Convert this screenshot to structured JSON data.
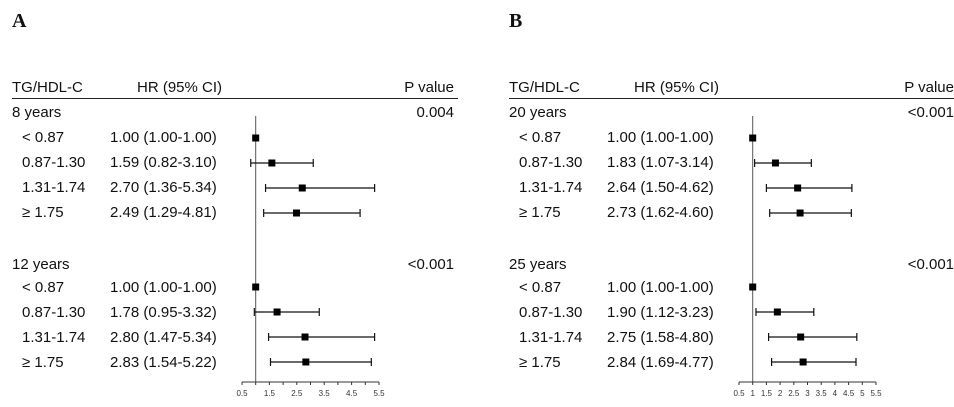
{
  "panels": [
    {
      "letter": "A",
      "headers": {
        "group": "TG/HDL-C",
        "hr": "HR (95% CI)",
        "p": "P value"
      },
      "sections": [
        {
          "label": "8 years",
          "p": "0.004",
          "rows": [
            {
              "category": "< 0.87",
              "hr_text": "1.00 (1.00-1.00)"
            },
            {
              "category": "0.87-1.30",
              "hr_text": "1.59 (0.82-3.10)"
            },
            {
              "category": "1.31-1.74",
              "hr_text": "2.70 (1.36-5.34)"
            },
            {
              "category": "≥ 1.75",
              "hr_text": "2.49 (1.29-4.81)"
            }
          ]
        },
        {
          "label": "12 years",
          "p": "<0.001",
          "rows": [
            {
              "category": "< 0.87",
              "hr_text": "1.00 (1.00-1.00)"
            },
            {
              "category": "0.87-1.30",
              "hr_text": "1.78 (0.95-3.32)"
            },
            {
              "category": "1.31-1.74",
              "hr_text": "2.80 (1.47-5.34)"
            },
            {
              "category": "≥ 1.75",
              "hr_text": "2.83 (1.54-5.22)"
            }
          ]
        }
      ]
    },
    {
      "letter": "B",
      "headers": {
        "group": "TG/HDL-C",
        "hr": "HR (95% CI)",
        "p": "P value"
      },
      "sections": [
        {
          "label": "20 years",
          "p": "<0.001",
          "rows": [
            {
              "category": "< 0.87",
              "hr_text": "1.00 (1.00-1.00)"
            },
            {
              "category": "0.87-1.30",
              "hr_text": "1.83 (1.07-3.14)"
            },
            {
              "category": "1.31-1.74",
              "hr_text": "2.64 (1.50-4.62)"
            },
            {
              "category": "≥ 1.75",
              "hr_text": "2.73 (1.62-4.60)"
            }
          ]
        },
        {
          "label": "25 years",
          "p": "<0.001",
          "rows": [
            {
              "category": "< 0.87",
              "hr_text": "1.00 (1.00-1.00)"
            },
            {
              "category": "0.87-1.30",
              "hr_text": "1.90 (1.12-3.23)"
            },
            {
              "category": "1.31-1.74",
              "hr_text": "2.75 (1.58-4.80)"
            },
            {
              "category": "≥ 1.75",
              "hr_text": "2.84 (1.69-4.77)"
            }
          ]
        }
      ]
    }
  ],
  "chart_data": [
    {
      "type": "forest",
      "panel": "A",
      "xlim": [
        0.5,
        5.5
      ],
      "xticks": [
        "0.5",
        "1.5",
        "2.5",
        "3.5",
        "4.5",
        "5.5"
      ],
      "reference_line": 1.0,
      "series": [
        {
          "name": "8 years",
          "categories": [
            "< 0.87",
            "0.87-1.30",
            "1.31-1.74",
            "≥ 1.75"
          ],
          "hr": [
            1.0,
            1.59,
            2.7,
            2.49
          ],
          "lower": [
            1.0,
            0.82,
            1.36,
            1.29
          ],
          "upper": [
            1.0,
            3.1,
            5.34,
            4.81
          ]
        },
        {
          "name": "12 years",
          "categories": [
            "< 0.87",
            "0.87-1.30",
            "1.31-1.74",
            "≥ 1.75"
          ],
          "hr": [
            1.0,
            1.78,
            2.8,
            2.83
          ],
          "lower": [
            1.0,
            0.95,
            1.47,
            1.54
          ],
          "upper": [
            1.0,
            3.32,
            5.34,
            5.22
          ]
        }
      ]
    },
    {
      "type": "forest",
      "panel": "B",
      "xlim": [
        0.5,
        5.5
      ],
      "xticks": [
        "0.5",
        "1",
        "1.5",
        "2",
        "2.5",
        "3",
        "3.5",
        "4",
        "4.5",
        "5",
        "5.5"
      ],
      "reference_line": 1.0,
      "series": [
        {
          "name": "20 years",
          "categories": [
            "< 0.87",
            "0.87-1.30",
            "1.31-1.74",
            "≥ 1.75"
          ],
          "hr": [
            1.0,
            1.83,
            2.64,
            2.73
          ],
          "lower": [
            1.0,
            1.07,
            1.5,
            1.62
          ],
          "upper": [
            1.0,
            3.14,
            4.62,
            4.6
          ]
        },
        {
          "name": "25 years",
          "categories": [
            "< 0.87",
            "0.87-1.30",
            "1.31-1.74",
            "≥ 1.75"
          ],
          "hr": [
            1.0,
            1.9,
            2.75,
            2.84
          ],
          "lower": [
            1.0,
            1.12,
            1.58,
            1.69
          ],
          "upper": [
            1.0,
            3.23,
            4.8,
            4.77
          ]
        }
      ]
    }
  ]
}
